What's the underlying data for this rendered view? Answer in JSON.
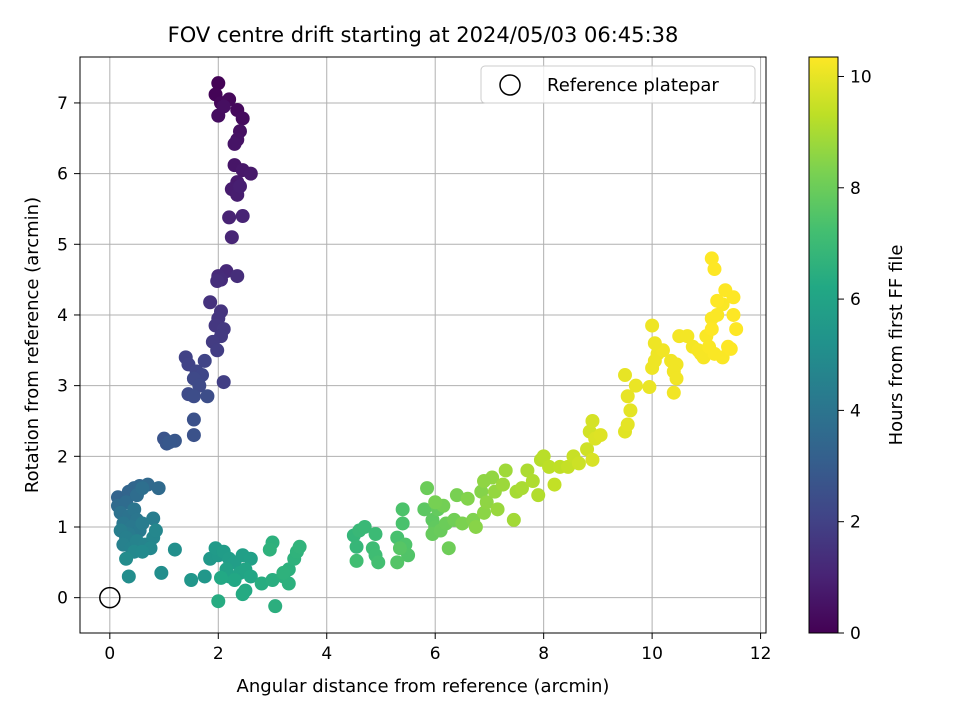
{
  "chart_data": {
    "type": "scatter",
    "title": "FOV centre drift starting at 2024/05/03 06:45:38",
    "xlabel": "Angular distance from reference (arcmin)",
    "ylabel": "Rotation from reference (arcmin)",
    "xlim": [
      -0.55,
      12.1
    ],
    "ylim": [
      -0.5,
      7.65
    ],
    "xticks": [
      0,
      2,
      4,
      6,
      8,
      10,
      12
    ],
    "yticks": [
      0,
      1,
      2,
      3,
      4,
      5,
      6,
      7
    ],
    "grid": true,
    "legend": {
      "position": "top-right",
      "entries": [
        "Reference platepar"
      ]
    },
    "reference_point": {
      "x": 0,
      "y": 0,
      "label": "Reference platepar"
    },
    "colorbar": {
      "label": "Hours from first FF file",
      "range": [
        0,
        10.35
      ],
      "ticks": [
        0,
        2,
        4,
        6,
        8,
        10
      ],
      "colormap": "viridis"
    },
    "points": [
      [
        2.0,
        7.28,
        0.05
      ],
      [
        1.95,
        7.12,
        0.1
      ],
      [
        2.05,
        7.0,
        0.15
      ],
      [
        2.2,
        7.05,
        0.2
      ],
      [
        2.35,
        6.9,
        0.25
      ],
      [
        2.45,
        6.78,
        0.3
      ],
      [
        2.0,
        6.82,
        0.35
      ],
      [
        2.1,
        6.95,
        0.4
      ],
      [
        2.4,
        6.6,
        0.45
      ],
      [
        2.35,
        6.48,
        0.5
      ],
      [
        2.3,
        6.42,
        0.55
      ],
      [
        2.3,
        6.12,
        0.6
      ],
      [
        2.45,
        6.05,
        0.65
      ],
      [
        2.6,
        6.0,
        0.7
      ],
      [
        2.35,
        5.88,
        0.75
      ],
      [
        2.25,
        5.78,
        0.8
      ],
      [
        2.35,
        5.7,
        0.85
      ],
      [
        2.4,
        5.82,
        0.9
      ],
      [
        2.2,
        5.38,
        1.0
      ],
      [
        2.45,
        5.4,
        1.05
      ],
      [
        2.25,
        5.1,
        1.1
      ],
      [
        2.15,
        4.62,
        1.2
      ],
      [
        2.0,
        4.55,
        1.25
      ],
      [
        2.05,
        4.5,
        1.3
      ],
      [
        2.35,
        4.55,
        1.35
      ],
      [
        1.98,
        4.48,
        1.4
      ],
      [
        1.85,
        4.18,
        1.5
      ],
      [
        2.05,
        4.05,
        1.55
      ],
      [
        2.0,
        3.95,
        1.6
      ],
      [
        1.95,
        3.85,
        1.65
      ],
      [
        2.1,
        3.8,
        1.7
      ],
      [
        2.05,
        3.7,
        1.75
      ],
      [
        1.9,
        3.62,
        1.8
      ],
      [
        1.98,
        3.5,
        1.85
      ],
      [
        2.1,
        3.05,
        1.9
      ],
      [
        1.4,
        3.4,
        2.0
      ],
      [
        1.45,
        3.3,
        2.05
      ],
      [
        1.75,
        3.35,
        2.1
      ],
      [
        1.6,
        3.2,
        2.15
      ],
      [
        1.7,
        3.15,
        2.2
      ],
      [
        1.55,
        3.1,
        2.25
      ],
      [
        1.65,
        3.0,
        2.3
      ],
      [
        1.45,
        2.88,
        2.35
      ],
      [
        1.55,
        2.85,
        2.4
      ],
      [
        1.8,
        2.85,
        2.45
      ],
      [
        1.55,
        2.52,
        2.55
      ],
      [
        1.55,
        2.3,
        2.6
      ],
      [
        1.0,
        2.25,
        2.7
      ],
      [
        1.05,
        2.18,
        2.75
      ],
      [
        1.2,
        2.22,
        2.8
      ],
      [
        1.1,
        2.2,
        2.85
      ],
      [
        0.15,
        1.42,
        3.3
      ],
      [
        0.35,
        1.5,
        3.35
      ],
      [
        0.45,
        1.55,
        3.4
      ],
      [
        0.55,
        1.58,
        3.45
      ],
      [
        0.7,
        1.6,
        3.5
      ],
      [
        0.9,
        1.55,
        3.55
      ],
      [
        0.15,
        1.3,
        3.6
      ],
      [
        0.3,
        1.35,
        3.65
      ],
      [
        0.5,
        1.45,
        3.7
      ],
      [
        0.6,
        1.55,
        3.75
      ],
      [
        0.2,
        1.2,
        3.9
      ],
      [
        0.35,
        1.15,
        3.95
      ],
      [
        0.45,
        1.25,
        4.0
      ],
      [
        0.5,
        1.1,
        4.05
      ],
      [
        0.25,
        1.05,
        4.1
      ],
      [
        0.4,
        1.0,
        4.15
      ],
      [
        0.55,
        0.95,
        4.2
      ],
      [
        0.35,
        0.9,
        4.25
      ],
      [
        0.6,
        1.05,
        4.3
      ],
      [
        0.8,
        1.12,
        4.35
      ],
      [
        0.2,
        0.95,
        4.4
      ],
      [
        0.3,
        0.85,
        4.45
      ],
      [
        0.25,
        0.75,
        4.5
      ],
      [
        0.4,
        0.7,
        4.55
      ],
      [
        0.5,
        0.8,
        4.6
      ],
      [
        0.65,
        0.75,
        4.65
      ],
      [
        0.8,
        0.85,
        4.7
      ],
      [
        0.85,
        0.95,
        4.75
      ],
      [
        0.75,
        0.7,
        4.8
      ],
      [
        0.45,
        0.65,
        4.85
      ],
      [
        0.6,
        0.65,
        4.9
      ],
      [
        0.3,
        0.55,
        4.95
      ],
      [
        0.35,
        0.3,
        5.0
      ],
      [
        0.95,
        0.35,
        5.05
      ],
      [
        1.2,
        0.68,
        5.1
      ],
      [
        1.5,
        0.25,
        5.4
      ],
      [
        1.75,
        0.3,
        5.45
      ],
      [
        1.85,
        0.55,
        5.5
      ],
      [
        2.0,
        0.6,
        5.55
      ],
      [
        1.95,
        0.7,
        5.6
      ],
      [
        2.1,
        0.65,
        5.65
      ],
      [
        2.2,
        0.55,
        5.7
      ],
      [
        2.3,
        0.5,
        5.75
      ],
      [
        2.45,
        0.6,
        5.8
      ],
      [
        2.6,
        0.55,
        5.85
      ],
      [
        2.15,
        0.4,
        5.9
      ],
      [
        2.2,
        0.3,
        5.95
      ],
      [
        2.4,
        0.35,
        6.0
      ],
      [
        2.5,
        0.4,
        6.05
      ],
      [
        2.6,
        0.3,
        6.1
      ],
      [
        2.3,
        0.25,
        6.15
      ],
      [
        2.05,
        0.28,
        6.2
      ],
      [
        2.5,
        0.1,
        6.25
      ],
      [
        2.45,
        0.05,
        6.3
      ],
      [
        2.0,
        -0.05,
        6.35
      ],
      [
        2.8,
        0.2,
        6.4
      ],
      [
        3.0,
        0.25,
        6.45
      ],
      [
        3.2,
        0.3,
        6.5
      ],
      [
        3.3,
        0.4,
        6.55
      ],
      [
        3.4,
        0.55,
        6.6
      ],
      [
        3.45,
        0.65,
        6.65
      ],
      [
        3.5,
        0.72,
        6.7
      ],
      [
        3.0,
        0.78,
        6.55
      ],
      [
        2.95,
        0.68,
        6.6
      ],
      [
        3.05,
        -0.12,
        6.5
      ],
      [
        3.3,
        0.2,
        6.55
      ],
      [
        3.2,
        0.35,
        6.6
      ],
      [
        4.5,
        0.88,
        6.8
      ],
      [
        4.55,
        0.72,
        6.85
      ],
      [
        4.6,
        0.95,
        6.9
      ],
      [
        4.7,
        1.0,
        6.95
      ],
      [
        4.9,
        0.9,
        7.0
      ],
      [
        4.85,
        0.7,
        7.05
      ],
      [
        4.9,
        0.6,
        7.1
      ],
      [
        4.55,
        0.52,
        7.15
      ],
      [
        4.95,
        0.5,
        7.2
      ],
      [
        5.3,
        0.85,
        7.3
      ],
      [
        5.4,
        1.05,
        7.35
      ],
      [
        5.4,
        1.25,
        7.4
      ],
      [
        5.45,
        0.75,
        7.45
      ],
      [
        5.5,
        0.6,
        7.5
      ],
      [
        5.3,
        0.5,
        7.55
      ],
      [
        5.35,
        0.7,
        7.6
      ],
      [
        5.8,
        1.25,
        7.7
      ],
      [
        5.95,
        1.1,
        7.75
      ],
      [
        6.0,
        1.0,
        7.8
      ],
      [
        6.05,
        1.25,
        7.85
      ],
      [
        5.95,
        0.9,
        7.9
      ],
      [
        6.1,
        0.95,
        7.95
      ],
      [
        6.2,
        1.05,
        8.0
      ],
      [
        6.25,
        0.7,
        8.05
      ],
      [
        6.35,
        1.1,
        8.1
      ],
      [
        6.15,
        1.3,
        8.15
      ],
      [
        6.0,
        1.35,
        8.2
      ],
      [
        6.4,
        1.45,
        8.25
      ],
      [
        6.5,
        1.05,
        8.3
      ],
      [
        6.7,
        1.1,
        8.35
      ],
      [
        6.6,
        1.4,
        8.4
      ],
      [
        6.85,
        1.5,
        8.45
      ],
      [
        6.75,
        1.0,
        8.5
      ],
      [
        6.9,
        1.2,
        8.55
      ],
      [
        6.95,
        1.35,
        8.6
      ],
      [
        7.05,
        1.7,
        8.65
      ],
      [
        7.1,
        1.5,
        8.7
      ],
      [
        7.15,
        1.25,
        8.75
      ],
      [
        7.25,
        1.6,
        8.8
      ],
      [
        7.3,
        1.8,
        8.85
      ],
      [
        7.45,
        1.1,
        8.9
      ],
      [
        7.5,
        1.5,
        8.95
      ],
      [
        7.6,
        1.55,
        9.0
      ],
      [
        7.7,
        1.8,
        9.05
      ],
      [
        7.8,
        1.65,
        9.1
      ],
      [
        7.9,
        1.45,
        9.15
      ],
      [
        7.95,
        1.95,
        9.2
      ],
      [
        8.0,
        2.0,
        9.25
      ],
      [
        8.1,
        1.85,
        9.3
      ],
      [
        8.3,
        1.85,
        9.35
      ],
      [
        8.2,
        1.6,
        9.4
      ],
      [
        8.45,
        1.85,
        9.45
      ],
      [
        8.55,
        2.0,
        9.5
      ],
      [
        8.65,
        1.9,
        9.55
      ],
      [
        8.8,
        2.1,
        9.6
      ],
      [
        8.85,
        2.35,
        9.65
      ],
      [
        8.9,
        2.5,
        9.7
      ],
      [
        8.9,
        1.95,
        9.75
      ],
      [
        8.95,
        2.25,
        9.8
      ],
      [
        5.85,
        1.55,
        8.0
      ],
      [
        6.9,
        1.65,
        8.6
      ],
      [
        9.05,
        2.3,
        9.85
      ],
      [
        9.5,
        2.35,
        9.9
      ],
      [
        9.55,
        2.45,
        9.95
      ],
      [
        9.6,
        2.65,
        9.95
      ],
      [
        9.55,
        2.85,
        10.0
      ],
      [
        9.5,
        3.15,
        10.0
      ],
      [
        9.7,
        3.0,
        10.05
      ],
      [
        9.95,
        2.98,
        10.05
      ],
      [
        10.0,
        3.25,
        10.1
      ],
      [
        10.05,
        3.35,
        10.1
      ],
      [
        10.1,
        3.45,
        10.1
      ],
      [
        10.2,
        3.5,
        10.15
      ],
      [
        10.35,
        3.35,
        10.15
      ],
      [
        10.45,
        3.3,
        10.15
      ],
      [
        10.5,
        3.7,
        10.2
      ],
      [
        10.65,
        3.7,
        10.2
      ],
      [
        10.75,
        3.55,
        10.2
      ],
      [
        10.85,
        3.5,
        10.25
      ],
      [
        10.9,
        3.45,
        10.25
      ],
      [
        10.95,
        3.4,
        10.25
      ],
      [
        11.0,
        3.7,
        10.3
      ],
      [
        11.05,
        3.55,
        10.3
      ],
      [
        11.15,
        3.45,
        10.3
      ],
      [
        11.3,
        3.4,
        10.3
      ],
      [
        11.4,
        3.55,
        10.35
      ],
      [
        11.1,
        3.95,
        10.3
      ],
      [
        11.2,
        4.0,
        10.3
      ],
      [
        11.3,
        4.15,
        10.3
      ],
      [
        11.5,
        4.0,
        10.35
      ],
      [
        11.55,
        3.8,
        10.35
      ],
      [
        11.5,
        4.25,
        10.35
      ],
      [
        11.35,
        4.35,
        10.35
      ],
      [
        11.1,
        4.8,
        10.35
      ],
      [
        11.15,
        4.65,
        10.35
      ],
      [
        11.2,
        4.2,
        10.35
      ],
      [
        11.1,
        3.8,
        10.35
      ],
      [
        10.05,
        3.6,
        10.1
      ],
      [
        10.0,
        3.85,
        10.1
      ],
      [
        10.4,
        3.2,
        10.15
      ],
      [
        10.45,
        3.1,
        10.15
      ],
      [
        10.4,
        2.9,
        10.15
      ],
      [
        11.45,
        3.52,
        10.35
      ]
    ]
  }
}
